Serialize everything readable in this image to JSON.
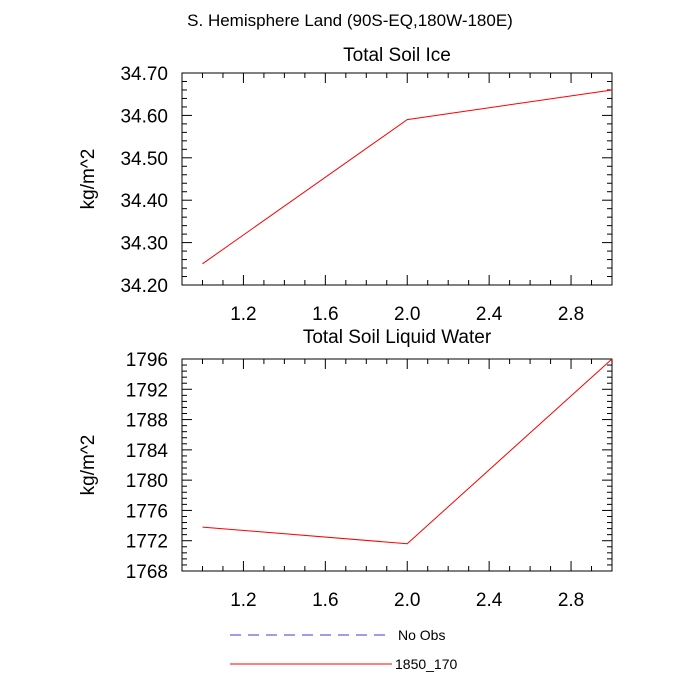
{
  "figure_title": "S. Hemisphere Land (90S-EQ,180W-180E)",
  "colors": {
    "model": "#ff0000",
    "obs": "#3b3bd6",
    "axis": "#000000"
  },
  "legend": [
    {
      "label": "No Obs",
      "style": "dashed",
      "color": "#3b3bd6"
    },
    {
      "label": "1850_170",
      "style": "solid",
      "color": "#ff0000"
    }
  ],
  "chart_data": [
    {
      "type": "line",
      "title": "Total Soil Ice",
      "xlabel": "",
      "ylabel": "kg/m^2",
      "xlim": [
        0.9,
        3.0
      ],
      "ylim": [
        34.2,
        34.7
      ],
      "x_ticks": [
        "1.2",
        "1.6",
        "2.0",
        "2.4",
        "2.8"
      ],
      "x_tick_values": [
        1.2,
        1.6,
        2.0,
        2.4,
        2.8
      ],
      "y_ticks": [
        "34.20",
        "34.30",
        "34.40",
        "34.50",
        "34.60",
        "34.70"
      ],
      "y_tick_values": [
        34.2,
        34.3,
        34.4,
        34.5,
        34.6,
        34.7
      ],
      "series": [
        {
          "name": "1850_170",
          "x": [
            1.0,
            2.0,
            3.0
          ],
          "y": [
            34.25,
            34.59,
            34.66
          ]
        }
      ]
    },
    {
      "type": "line",
      "title": "Total Soil Liquid Water",
      "xlabel": "",
      "ylabel": "kg/m^2",
      "xlim": [
        0.9,
        3.0
      ],
      "ylim": [
        1768,
        1796
      ],
      "x_ticks": [
        "1.2",
        "1.6",
        "2.0",
        "2.4",
        "2.8"
      ],
      "x_tick_values": [
        1.2,
        1.6,
        2.0,
        2.4,
        2.8
      ],
      "y_ticks": [
        "1768",
        "1772",
        "1776",
        "1780",
        "1784",
        "1788",
        "1792",
        "1796"
      ],
      "y_tick_values": [
        1768,
        1772,
        1776,
        1780,
        1784,
        1788,
        1792,
        1796
      ],
      "series": [
        {
          "name": "1850_170",
          "x": [
            1.0,
            2.0,
            3.0
          ],
          "y": [
            1773.8,
            1771.6,
            1796.0
          ]
        }
      ]
    }
  ]
}
